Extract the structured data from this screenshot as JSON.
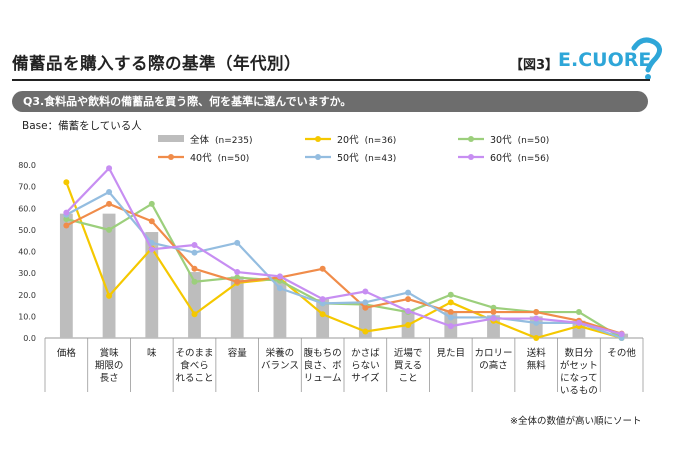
{
  "header": {
    "title": "備蓄品を購入する際の基準（年代別）",
    "figure_label": "【図3】",
    "logo_text": "E.CUORE",
    "question": "Q3.食料品や飲料の備蓄品を買う際、何を基準に選んでいますか。",
    "base": "Base：備蓄をしている人",
    "note": "※全体の数値が高い順にソート"
  },
  "colors": {
    "bar": "#bdbdbd",
    "series_20": "#f5c800",
    "series_30": "#9ccf7c",
    "series_40": "#f08c4a",
    "series_50": "#94bde0",
    "series_60": "#c78ef2",
    "question_bar": "#6d6d6d"
  },
  "chart_data": {
    "type": "bar",
    "categories": [
      [
        "価格"
      ],
      [
        "賞味",
        "期限の",
        "長さ"
      ],
      [
        "味"
      ],
      [
        "そのまま",
        "食べら",
        "れること"
      ],
      [
        "容量"
      ],
      [
        "栄養の",
        "バランス"
      ],
      [
        "腹もちの",
        "良さ、ボ",
        "リューム"
      ],
      [
        "かさば",
        "らない",
        "サイズ"
      ],
      [
        "近場で",
        "買える",
        "こと"
      ],
      [
        "見た目"
      ],
      [
        "カロリー",
        "の高さ"
      ],
      [
        "送料",
        "無料"
      ],
      [
        "数日分",
        "がセット",
        "になって",
        "いるもの"
      ],
      [
        "その他"
      ]
    ],
    "ylim": [
      0,
      80
    ],
    "yticks": [
      "0.0",
      "10.0",
      "20.0",
      "30.0",
      "40.0",
      "50.0",
      "60.0",
      "70.0",
      "80.0"
    ],
    "bar_series": {
      "name": "全体",
      "n": "(n=235)",
      "values": [
        57.5,
        57.5,
        49,
        30.5,
        28.5,
        26.5,
        18,
        15,
        13,
        12.5,
        10.5,
        10,
        8,
        2
      ]
    },
    "line_series": [
      {
        "name": "20代",
        "n": "(n=36)",
        "color": "#f5c800",
        "values": [
          72,
          19.5,
          41.5,
          11,
          25.5,
          27.5,
          11,
          3,
          6,
          16.5,
          8,
          0,
          5.5,
          0
        ]
      },
      {
        "name": "30代",
        "n": "(n=50)",
        "color": "#9ccf7c",
        "values": [
          55,
          50,
          62,
          26,
          28,
          26.5,
          16,
          15.5,
          12,
          20,
          14,
          12,
          12,
          0
        ]
      },
      {
        "name": "40代",
        "n": "(n=50)",
        "color": "#f08c4a",
        "values": [
          52,
          62,
          54,
          32,
          26,
          28,
          32,
          14,
          18,
          12,
          12,
          12,
          8,
          2
        ]
      },
      {
        "name": "50代",
        "n": "(n=43)",
        "color": "#94bde0",
        "values": [
          57,
          67.5,
          44,
          39.5,
          44,
          23,
          16,
          16.5,
          21,
          9.5,
          9.5,
          7,
          7,
          0
        ]
      },
      {
        "name": "60代",
        "n": "(n=56)",
        "color": "#c78ef2",
        "values": [
          58,
          78.5,
          41,
          43,
          30.5,
          28.5,
          18,
          21.5,
          12.5,
          5.5,
          9,
          9,
          7,
          1.8
        ]
      }
    ],
    "legend_position": "top"
  }
}
